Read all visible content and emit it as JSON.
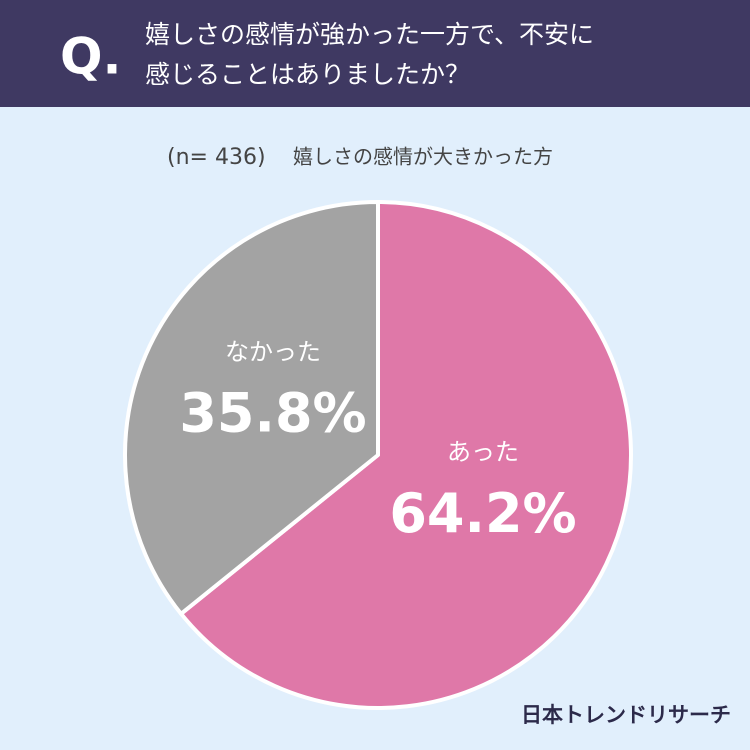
{
  "chart_data": {
    "type": "pie",
    "question_mark": "Q.",
    "title": [
      "嬉しさの感情が強かった一方で、不安に",
      "感じることはありましたか？"
    ],
    "sample": "(n= 436)",
    "subtitle": "嬉しさの感情が大きかった方",
    "categories": [
      "あった",
      "なかった"
    ],
    "values": [
      64.2,
      35.8
    ],
    "value_labels": [
      "64.2%",
      "35.8%"
    ],
    "colors": [
      "#df78a8",
      "#a3a3a3"
    ],
    "source": "日本トレンドリサーチ"
  }
}
